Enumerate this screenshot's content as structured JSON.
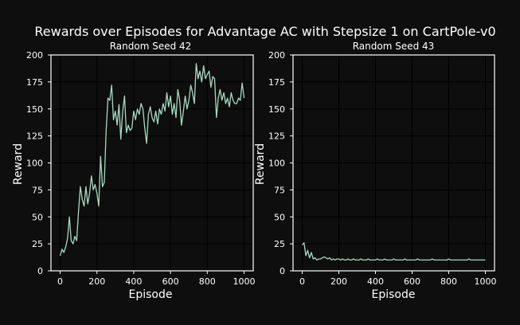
{
  "figure": {
    "title": "Rewards over Episodes for Advantage AC with Stepsize 1 on CartPole-v0",
    "background": "#0e0e0e",
    "line_color": "#a8d8c2"
  },
  "chart_data": [
    {
      "type": "line",
      "title": "Random Seed 42",
      "xlabel": "Episode",
      "ylabel": "Reward",
      "xlim": [
        -50,
        1050
      ],
      "ylim": [
        0,
        200
      ],
      "xticks": [
        0,
        200,
        400,
        600,
        800,
        1000
      ],
      "yticks": [
        0,
        25,
        50,
        75,
        100,
        125,
        150,
        175,
        200
      ],
      "grid": true,
      "x": [
        0,
        10,
        20,
        30,
        40,
        50,
        60,
        70,
        80,
        90,
        100,
        110,
        120,
        130,
        140,
        150,
        160,
        170,
        180,
        190,
        200,
        210,
        220,
        230,
        240,
        250,
        260,
        270,
        280,
        290,
        300,
        310,
        320,
        330,
        340,
        350,
        360,
        370,
        380,
        390,
        400,
        410,
        420,
        430,
        440,
        450,
        460,
        470,
        480,
        490,
        500,
        510,
        520,
        530,
        540,
        550,
        560,
        570,
        580,
        590,
        600,
        610,
        620,
        630,
        640,
        650,
        660,
        670,
        680,
        690,
        700,
        710,
        720,
        730,
        740,
        750,
        760,
        770,
        780,
        790,
        800,
        810,
        820,
        830,
        840,
        850,
        860,
        870,
        880,
        890,
        900,
        910,
        920,
        930,
        940,
        950,
        960,
        970,
        980,
        990,
        1000
      ],
      "values": [
        14,
        20,
        17,
        22,
        30,
        50,
        28,
        25,
        32,
        28,
        55,
        78,
        66,
        60,
        78,
        62,
        72,
        88,
        75,
        80,
        72,
        60,
        106,
        78,
        82,
        130,
        160,
        158,
        172,
        140,
        148,
        135,
        154,
        122,
        148,
        162,
        128,
        135,
        130,
        132,
        148,
        140,
        150,
        145,
        155,
        150,
        132,
        118,
        145,
        152,
        142,
        138,
        148,
        136,
        150,
        145,
        155,
        148,
        165,
        152,
        162,
        145,
        155,
        142,
        168,
        158,
        135,
        148,
        162,
        150,
        158,
        172,
        165,
        155,
        192,
        178,
        185,
        175,
        190,
        178,
        182,
        185,
        170,
        180,
        178,
        142,
        160,
        168,
        158,
        165,
        155,
        160,
        152,
        165,
        158,
        155,
        155,
        160,
        158,
        174,
        160
      ]
    },
    {
      "type": "line",
      "title": "Random Seed 43",
      "xlabel": "Episode",
      "ylabel": "Reward",
      "xlim": [
        -50,
        1050
      ],
      "ylim": [
        0,
        200
      ],
      "xticks": [
        0,
        200,
        400,
        600,
        800,
        1000
      ],
      "yticks": [
        0,
        25,
        50,
        75,
        100,
        125,
        150,
        175,
        200
      ],
      "grid": true,
      "x": [
        0,
        10,
        20,
        30,
        40,
        50,
        60,
        70,
        80,
        90,
        100,
        110,
        120,
        130,
        140,
        150,
        160,
        170,
        180,
        190,
        200,
        210,
        220,
        230,
        240,
        250,
        260,
        270,
        280,
        290,
        300,
        310,
        320,
        330,
        340,
        350,
        360,
        370,
        380,
        390,
        400,
        410,
        420,
        430,
        440,
        450,
        460,
        470,
        480,
        490,
        500,
        510,
        520,
        530,
        540,
        550,
        560,
        570,
        580,
        590,
        600,
        610,
        620,
        630,
        640,
        650,
        660,
        670,
        680,
        690,
        700,
        710,
        720,
        730,
        740,
        750,
        760,
        770,
        780,
        790,
        800,
        810,
        820,
        830,
        840,
        850,
        860,
        870,
        880,
        890,
        900,
        910,
        920,
        930,
        940,
        950,
        960,
        970,
        980,
        990,
        1000
      ],
      "values": [
        24,
        26,
        14,
        19,
        12,
        17,
        11,
        12,
        10,
        11,
        11,
        12,
        13,
        12,
        11,
        12,
        10,
        11,
        10,
        11,
        11,
        10,
        11,
        10,
        10,
        11,
        10,
        10,
        11,
        10,
        10,
        10,
        11,
        10,
        10,
        10,
        11,
        10,
        10,
        10,
        10,
        11,
        10,
        10,
        10,
        11,
        10,
        10,
        10,
        10,
        11,
        10,
        10,
        10,
        10,
        10,
        11,
        10,
        10,
        10,
        10,
        10,
        10,
        11,
        10,
        10,
        10,
        10,
        10,
        10,
        10,
        11,
        10,
        10,
        10,
        10,
        10,
        10,
        10,
        10,
        11,
        10,
        10,
        10,
        10,
        10,
        10,
        10,
        10,
        10,
        10,
        11,
        10,
        10,
        10,
        10,
        10,
        10,
        10,
        10,
        10
      ]
    }
  ]
}
